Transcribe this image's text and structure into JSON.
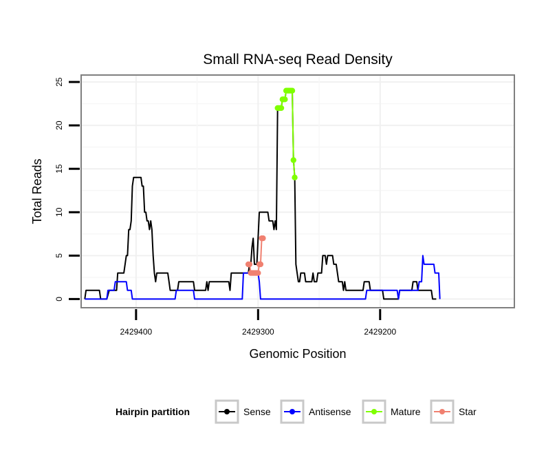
{
  "chart_data": {
    "type": "line",
    "title": "Small RNA-seq Read Density",
    "xlabel": "Genomic Position",
    "ylabel": "Total Reads",
    "xlim": [
      2429445,
      2429090
    ],
    "ylim": [
      -1,
      25.8
    ],
    "x_reversed": true,
    "x_ticks": [
      2429400,
      2429300,
      2429200
    ],
    "x_tick_labels": [
      "2429400",
      "2429300",
      "2429200"
    ],
    "y_ticks": [
      0,
      5,
      10,
      15,
      20,
      25
    ],
    "y_tick_labels": [
      "0",
      "5",
      "10",
      "15",
      "20",
      "25"
    ],
    "grid": true,
    "legend": {
      "title": "Hairpin partition",
      "position": "bottom",
      "entries": [
        {
          "label": "Sense",
          "color": "#000000"
        },
        {
          "label": "Antisense",
          "color": "#0000ff"
        },
        {
          "label": "Mature",
          "color": "#7fff00"
        },
        {
          "label": "Star",
          "color": "#f08070"
        }
      ]
    },
    "series": [
      {
        "name": "Sense",
        "color": "#000000",
        "points": [
          [
            2429442,
            0
          ],
          [
            2429441,
            1
          ],
          [
            2429430,
            1
          ],
          [
            2429429,
            0
          ],
          [
            2429424,
            0
          ],
          [
            2429422,
            1
          ],
          [
            2429416,
            1
          ],
          [
            2429415,
            3
          ],
          [
            2429410,
            3
          ],
          [
            2429408,
            5
          ],
          [
            2429407,
            5
          ],
          [
            2429406,
            8
          ],
          [
            2429405,
            8
          ],
          [
            2429404,
            9
          ],
          [
            2429403,
            13
          ],
          [
            2429402,
            14
          ],
          [
            2429396,
            14
          ],
          [
            2429395,
            13
          ],
          [
            2429394,
            13
          ],
          [
            2429393,
            10
          ],
          [
            2429392,
            10
          ],
          [
            2429391,
            9
          ],
          [
            2429390,
            9
          ],
          [
            2429389,
            8
          ],
          [
            2429388,
            9
          ],
          [
            2429387,
            8
          ],
          [
            2429386,
            5
          ],
          [
            2429385,
            3
          ],
          [
            2429384,
            2
          ],
          [
            2429383,
            3
          ],
          [
            2429374,
            3
          ],
          [
            2429373,
            2
          ],
          [
            2429372,
            1
          ],
          [
            2429366,
            1
          ],
          [
            2429365,
            2
          ],
          [
            2429353,
            2
          ],
          [
            2429352,
            1
          ],
          [
            2429343,
            1
          ],
          [
            2429342,
            2
          ],
          [
            2429341,
            1
          ],
          [
            2429340,
            2
          ],
          [
            2429324,
            2
          ],
          [
            2429323,
            1
          ],
          [
            2429322,
            3
          ],
          [
            2429308,
            3
          ],
          [
            2429307,
            4
          ],
          [
            2429306,
            4
          ],
          [
            2429305,
            6
          ],
          [
            2429304,
            7
          ],
          [
            2429303,
            4
          ],
          [
            2429301,
            4
          ],
          [
            2429300,
            7
          ],
          [
            2429299,
            10
          ],
          [
            2429292,
            10
          ],
          [
            2429291,
            9
          ],
          [
            2429288,
            9
          ],
          [
            2429287,
            8
          ],
          [
            2429286,
            9
          ],
          [
            2429285,
            8
          ],
          [
            2429284,
            22
          ],
          [
            2429281,
            22
          ],
          [
            2429280,
            23
          ],
          [
            2429278,
            23
          ],
          [
            2429277,
            24
          ],
          [
            2429272,
            24
          ],
          [
            2429271,
            16
          ],
          [
            2429270,
            14
          ],
          [
            2429269,
            4
          ],
          [
            2429268,
            3
          ],
          [
            2429267,
            2
          ],
          [
            2429266,
            2
          ],
          [
            2429265,
            3
          ],
          [
            2429262,
            3
          ],
          [
            2429261,
            2
          ],
          [
            2429256,
            2
          ],
          [
            2429255,
            3
          ],
          [
            2429254,
            2
          ],
          [
            2429252,
            2
          ],
          [
            2429251,
            3
          ],
          [
            2429248,
            3
          ],
          [
            2429247,
            5
          ],
          [
            2429245,
            5
          ],
          [
            2429244,
            4
          ],
          [
            2429243,
            5
          ],
          [
            2429239,
            5
          ],
          [
            2429238,
            4
          ],
          [
            2429236,
            4
          ],
          [
            2429235,
            3
          ],
          [
            2429234,
            2
          ],
          [
            2429231,
            2
          ],
          [
            2429230,
            1
          ],
          [
            2429229,
            2
          ],
          [
            2429228,
            1
          ],
          [
            2429214,
            1
          ],
          [
            2429213,
            2
          ],
          [
            2429209,
            2
          ],
          [
            2429208,
            1
          ],
          [
            2429198,
            1
          ],
          [
            2429197,
            0
          ],
          [
            2429185,
            0
          ],
          [
            2429184,
            1
          ],
          [
            2429174,
            1
          ],
          [
            2429173,
            2
          ],
          [
            2429170,
            2
          ],
          [
            2429169,
            1
          ],
          [
            2429158,
            1
          ],
          [
            2429157,
            0
          ],
          [
            2429154,
            0
          ]
        ]
      },
      {
        "name": "Antisense",
        "color": "#0000ff",
        "points": [
          [
            2429442,
            0
          ],
          [
            2429424,
            0
          ],
          [
            2429423,
            1
          ],
          [
            2429418,
            1
          ],
          [
            2429417,
            2
          ],
          [
            2429408,
            2
          ],
          [
            2429407,
            1
          ],
          [
            2429404,
            1
          ],
          [
            2429403,
            0
          ],
          [
            2429368,
            0
          ],
          [
            2429367,
            1
          ],
          [
            2429353,
            1
          ],
          [
            2429352,
            0
          ],
          [
            2429313,
            0
          ],
          [
            2429312,
            3
          ],
          [
            2429300,
            3
          ],
          [
            2429299,
            2
          ],
          [
            2429298,
            0
          ],
          [
            2429212,
            0
          ],
          [
            2429211,
            1
          ],
          [
            2429186,
            1
          ],
          [
            2429185,
            0
          ],
          [
            2429184,
            1
          ],
          [
            2429169,
            1
          ],
          [
            2429168,
            2
          ],
          [
            2429166,
            2
          ],
          [
            2429165,
            5
          ],
          [
            2429164,
            4
          ],
          [
            2429156,
            4
          ],
          [
            2429155,
            3
          ],
          [
            2429152,
            3
          ],
          [
            2429151,
            0
          ]
        ]
      },
      {
        "name": "Mature",
        "color": "#7fff00",
        "points": [
          [
            2429284,
            22
          ],
          [
            2429283,
            22
          ],
          [
            2429282,
            22
          ],
          [
            2429281,
            22
          ],
          [
            2429280,
            23
          ],
          [
            2429279,
            23
          ],
          [
            2429278,
            23
          ],
          [
            2429277,
            24
          ],
          [
            2429276,
            24
          ],
          [
            2429275,
            24
          ],
          [
            2429274,
            24
          ],
          [
            2429273,
            24
          ],
          [
            2429272,
            24
          ],
          [
            2429271,
            16
          ],
          [
            2429270,
            14
          ]
        ]
      },
      {
        "name": "Star",
        "color": "#f08070",
        "points": [
          [
            2429308,
            4
          ],
          [
            2429307,
            4
          ],
          [
            2429306,
            3
          ],
          [
            2429305,
            3
          ],
          [
            2429304,
            3
          ],
          [
            2429303,
            3
          ],
          [
            2429302,
            3
          ],
          [
            2429301,
            3
          ],
          [
            2429300,
            3
          ],
          [
            2429299,
            4
          ],
          [
            2429298,
            4
          ],
          [
            2429297,
            7
          ],
          [
            2429296,
            7
          ]
        ]
      }
    ]
  }
}
